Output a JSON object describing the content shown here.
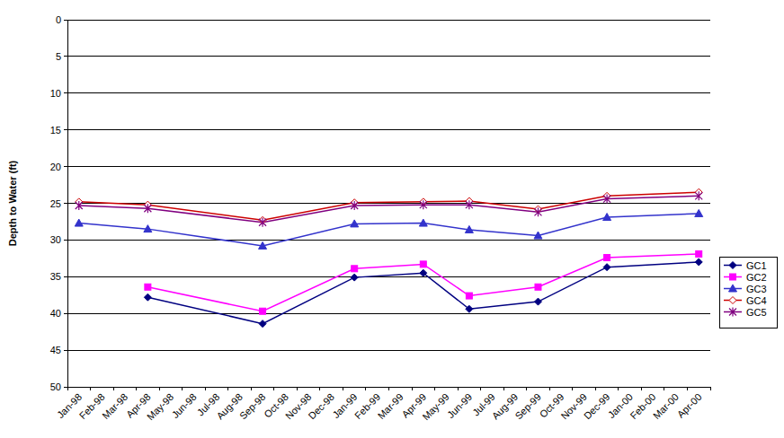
{
  "chart_data": {
    "type": "line",
    "y_label": "Depth to Water (ft)",
    "categories": [
      "Jan-98",
      "Feb-98",
      "Mar-98",
      "Apr-98",
      "May-98",
      "Jun-98",
      "Jul-98",
      "Aug-98",
      "Sep-98",
      "Oct-98",
      "Nov-98",
      "Dec-98",
      "Jan-99",
      "Feb-99",
      "Mar-99",
      "Apr-99",
      "May-99",
      "Jun-99",
      "Jul-99",
      "Aug-99",
      "Sep-99",
      "Oct-99",
      "Nov-99",
      "Dec-99",
      "Jan-00",
      "Feb-00",
      "Mar-00",
      "Apr-00"
    ],
    "ylim": [
      50,
      0
    ],
    "yticks": [
      0,
      5,
      10,
      15,
      20,
      25,
      30,
      35,
      40,
      45,
      50
    ],
    "grid": true,
    "legend": "right",
    "series": [
      {
        "name": "GC1",
        "color": "#000080",
        "marker": "diamond",
        "x": [
          "Apr-98",
          "Sep-98",
          "Jan-99",
          "Apr-99",
          "Jun-99",
          "Sep-99",
          "Dec-99",
          "Apr-00"
        ],
        "values": [
          37.8,
          41.4,
          35.1,
          34.5,
          39.4,
          38.4,
          33.7,
          33.0
        ]
      },
      {
        "name": "GC2",
        "color": "#ff00ff",
        "marker": "square",
        "x": [
          "Apr-98",
          "Sep-98",
          "Jan-99",
          "Apr-99",
          "Jun-99",
          "Sep-99",
          "Dec-99",
          "Apr-00"
        ],
        "values": [
          36.4,
          39.7,
          33.9,
          33.3,
          37.6,
          36.4,
          32.4,
          31.9
        ]
      },
      {
        "name": "GC3",
        "color": "#3333cc",
        "marker": "triangle",
        "x": [
          "Jan-98",
          "Apr-98",
          "Sep-98",
          "Jan-99",
          "Apr-99",
          "Jun-99",
          "Sep-99",
          "Dec-99",
          "Apr-00"
        ],
        "values": [
          27.7,
          28.5,
          30.8,
          27.8,
          27.7,
          28.6,
          29.4,
          26.9,
          26.4
        ]
      },
      {
        "name": "GC4",
        "color": "#cc0000",
        "marker": "diamond_open",
        "x": [
          "Jan-98",
          "Apr-98",
          "Sep-98",
          "Jan-99",
          "Apr-99",
          "Jun-99",
          "Sep-99",
          "Dec-99",
          "Apr-00"
        ],
        "values": [
          24.8,
          25.2,
          27.3,
          24.9,
          24.8,
          24.7,
          25.8,
          24.0,
          23.5
        ]
      },
      {
        "name": "GC5",
        "color": "#800080",
        "marker": "star",
        "x": [
          "Jan-98",
          "Apr-98",
          "Sep-98",
          "Jan-99",
          "Apr-99",
          "Jun-99",
          "Sep-99",
          "Dec-99",
          "Apr-00"
        ],
        "values": [
          25.3,
          25.7,
          27.6,
          25.3,
          25.2,
          25.2,
          26.2,
          24.4,
          24.0
        ]
      }
    ]
  }
}
